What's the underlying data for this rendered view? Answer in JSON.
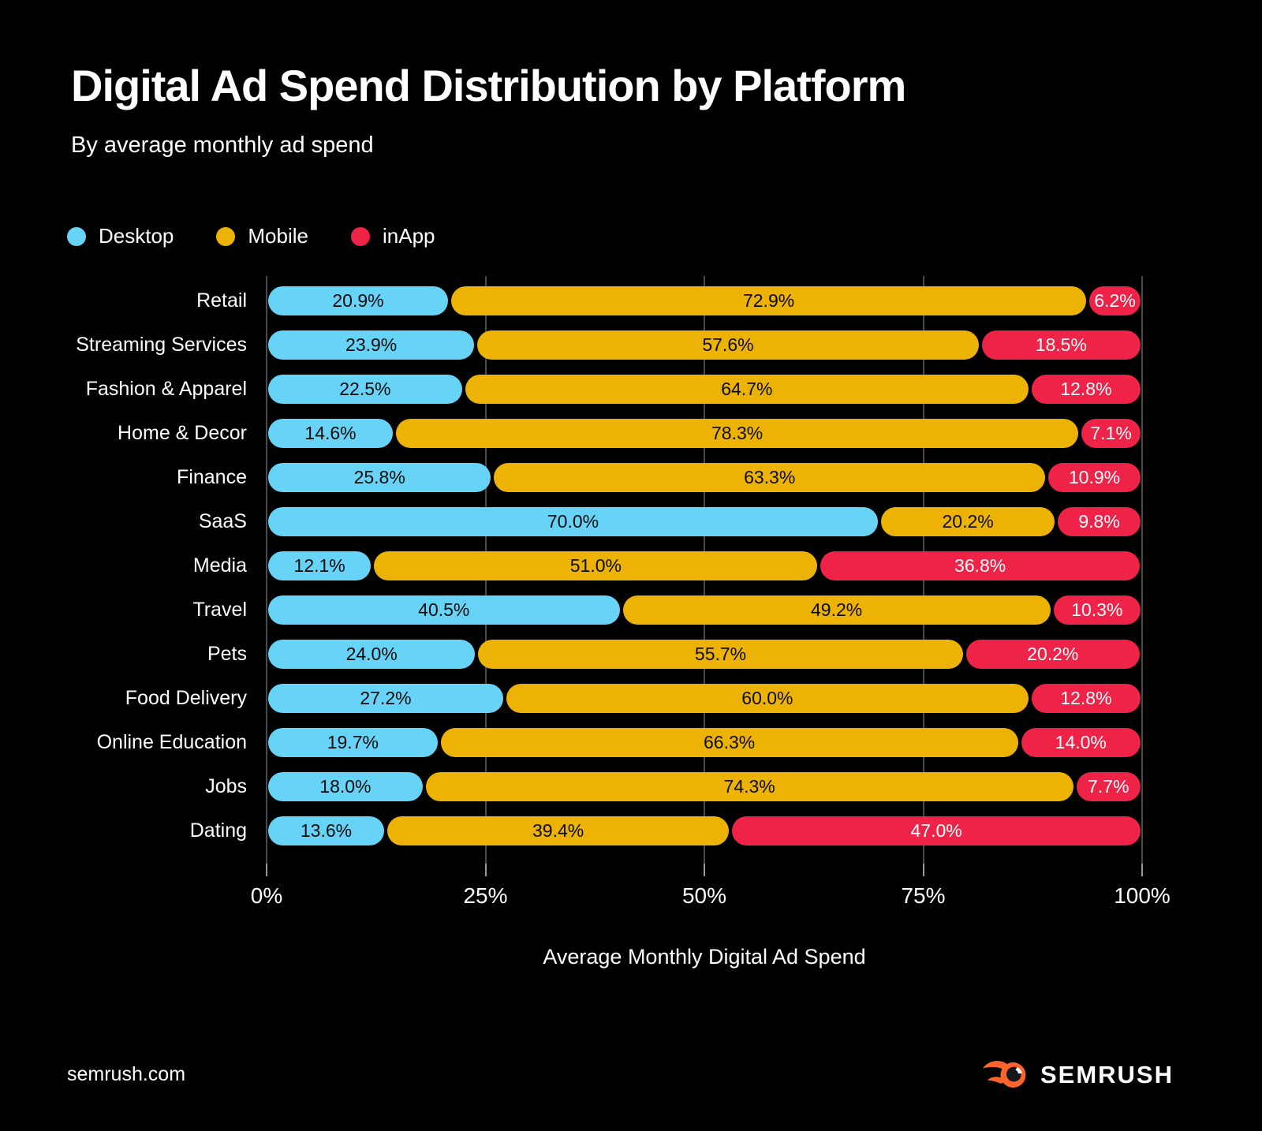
{
  "title": "Digital Ad Spend Distribution by Platform",
  "subtitle": "By average monthly ad spend",
  "legend": [
    {
      "label": "Desktop",
      "color": "#67d3f7"
    },
    {
      "label": "Mobile",
      "color": "#ecb204"
    },
    {
      "label": "inApp",
      "color": "#ef2347"
    }
  ],
  "colors": {
    "background": "#000000",
    "text": "#ffffff",
    "gridline": "#4a4a4a",
    "tick": "#9a9a9a",
    "brand_orange": "#ff642d"
  },
  "footer": {
    "site": "semrush.com",
    "brand": "SEMRUSH",
    "brand_icon": "semrush-flame-icon"
  },
  "chart_data": {
    "type": "bar",
    "orientation": "horizontal",
    "stacked": true,
    "title": "Digital Ad Spend Distribution by Platform",
    "subtitle": "By average monthly ad spend",
    "xlabel": "Average Monthly Digital Ad Spend",
    "xlim": [
      0,
      100
    ],
    "x_ticks": [
      "0%",
      "25%",
      "50%",
      "75%",
      "100%"
    ],
    "x_tick_values": [
      0,
      25,
      50,
      75,
      100
    ],
    "grid": true,
    "legend_position": "top-left",
    "value_format": "one_decimal_percent",
    "categories": [
      "Retail",
      "Streaming Services",
      "Fashion & Apparel",
      "Home & Decor",
      "Finance",
      "SaaS",
      "Media",
      "Travel",
      "Pets",
      "Food Delivery",
      "Online Education",
      "Jobs",
      "Dating"
    ],
    "series": [
      {
        "name": "Desktop",
        "color": "#67d3f7",
        "label_color": "#0b0b0b",
        "values": [
          20.9,
          23.9,
          22.5,
          14.6,
          25.8,
          70.0,
          12.1,
          40.5,
          24.0,
          27.2,
          19.7,
          18.0,
          13.6
        ]
      },
      {
        "name": "Mobile",
        "color": "#ecb204",
        "label_color": "#0b0b0b",
        "values": [
          72.9,
          57.6,
          64.7,
          78.3,
          63.3,
          20.2,
          51.0,
          49.2,
          55.7,
          60.0,
          66.3,
          74.3,
          39.4
        ]
      },
      {
        "name": "inApp",
        "color": "#ef2347",
        "label_color": "#ffffff",
        "values": [
          6.2,
          18.5,
          12.8,
          7.1,
          10.9,
          9.8,
          36.8,
          10.3,
          20.2,
          12.8,
          14.0,
          7.7,
          47.0
        ]
      }
    ]
  }
}
